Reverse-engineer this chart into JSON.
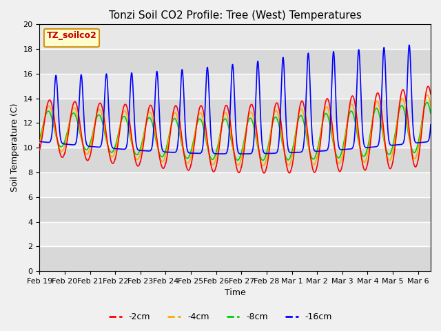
{
  "title": "Tonzi Soil CO2 Profile: Tree (West) Temperatures",
  "xlabel": "Time",
  "ylabel": "Soil Temperature (C)",
  "ylim": [
    0,
    20
  ],
  "yticks": [
    0,
    2,
    4,
    6,
    8,
    10,
    12,
    14,
    16,
    18,
    20
  ],
  "x_tick_labels": [
    "Feb 19",
    "Feb 20",
    "Feb 21",
    "Feb 22",
    "Feb 23",
    "Feb 24",
    "Feb 25",
    "Feb 26",
    "Feb 27",
    "Feb 28",
    "Mar 1",
    "Mar 2",
    "Mar 3",
    "Mar 4",
    "Mar 5",
    "Mar 6"
  ],
  "legend_box_label": "TZ_soilco2",
  "legend_entries": [
    "-2cm",
    "-4cm",
    "-8cm",
    "-16cm"
  ],
  "line_colors": [
    "#ff0000",
    "#ffaa00",
    "#00cc00",
    "#0000ff"
  ],
  "plot_bg_color": "#e8e8e8",
  "fig_bg_color": "#f0f0f0",
  "n_days": 15.5,
  "points_per_day": 240,
  "title_fontsize": 11,
  "axis_label_fontsize": 9,
  "tick_fontsize": 8,
  "legend_fontsize": 9,
  "linewidth": 1.2
}
